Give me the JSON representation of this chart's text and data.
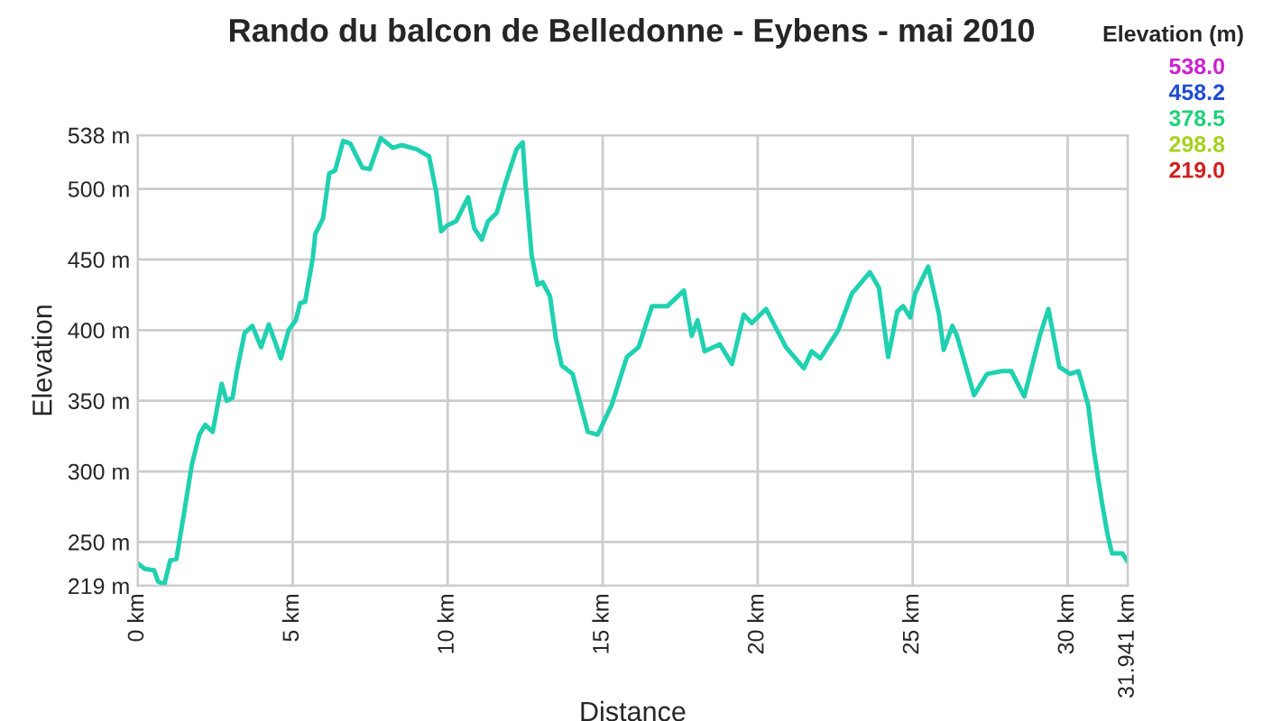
{
  "chart_data": {
    "type": "line",
    "title": "Rando du balcon de Belledonne - Eybens - mai 2010",
    "xlabel": "Distance",
    "ylabel": "Elevation",
    "annotations": [
      "Elevation (m)",
      "538.0",
      "458.2",
      "378.5",
      "298.8",
      "219.0"
    ],
    "x": [
      0,
      0.23,
      0.53,
      0.66,
      0.86,
      1.05,
      1.25,
      1.5,
      1.75,
      1.99,
      2.18,
      2.42,
      2.71,
      2.87,
      3.06,
      3.2,
      3.45,
      3.7,
      3.98,
      4.23,
      4.62,
      4.87,
      5.1,
      5.24,
      5.4,
      5.65,
      5.73,
      5.98,
      6.18,
      6.37,
      6.63,
      6.86,
      7.25,
      7.49,
      7.84,
      8.23,
      8.52,
      9.0,
      9.4,
      9.63,
      9.79,
      9.98,
      10.27,
      10.66,
      10.86,
      11.1,
      11.3,
      11.58,
      11.89,
      12.22,
      12.42,
      12.51,
      12.71,
      12.9,
      13.06,
      13.3,
      13.49,
      13.68,
      14.03,
      14.52,
      14.84,
      15.29,
      15.78,
      16.16,
      16.59,
      17.09,
      17.62,
      17.87,
      18.06,
      18.29,
      18.78,
      19.17,
      19.55,
      19.81,
      20.27,
      20.91,
      21.49,
      21.74,
      22.02,
      22.6,
      23.04,
      23.62,
      23.91,
      24.21,
      24.5,
      24.69,
      24.92,
      25.08,
      25.5,
      25.85,
      26.0,
      26.28,
      26.43,
      26.98,
      27.4,
      27.89,
      28.18,
      28.6,
      29.1,
      29.38,
      29.73,
      30.08,
      30.35,
      30.66,
      30.85,
      31.09,
      31.28,
      31.43,
      31.76,
      31.94
    ],
    "values": [
      235,
      231,
      230,
      222,
      220,
      237,
      238,
      271,
      305,
      326,
      333,
      328,
      362,
      350,
      352,
      371,
      398,
      403,
      388,
      404,
      380,
      400,
      407,
      419,
      420,
      451,
      468,
      479,
      511,
      513,
      534,
      532,
      515,
      514,
      536,
      529,
      531,
      528,
      523,
      498,
      470,
      474,
      477,
      494,
      472,
      464,
      477,
      483,
      506,
      528,
      533,
      504,
      453,
      432,
      434,
      424,
      394,
      375,
      369,
      328,
      326,
      347,
      381,
      388,
      417,
      417,
      428,
      396,
      407,
      385,
      390,
      376,
      411,
      405,
      415,
      388,
      373,
      385,
      380,
      400,
      426,
      441,
      430,
      381,
      413,
      417,
      409,
      426,
      445,
      411,
      386,
      403,
      396,
      354,
      369,
      371,
      371,
      353,
      396,
      415,
      374,
      369,
      371,
      347,
      314,
      280,
      256,
      242,
      242,
      236
    ],
    "xlim": [
      0,
      31.941
    ],
    "xticks": [
      {
        "value": 0,
        "label": "0 km"
      },
      {
        "value": 5,
        "label": "5 km"
      },
      {
        "value": 10,
        "label": "10 km"
      },
      {
        "value": 15,
        "label": "15 km"
      },
      {
        "value": 20,
        "label": "20 km"
      },
      {
        "value": 25,
        "label": "25 km"
      },
      {
        "value": 30,
        "label": "30 km"
      },
      {
        "value": 31.941,
        "label": "31.941 km"
      }
    ],
    "ylim": [
      219,
      538
    ],
    "yticks": [
      {
        "value": 219,
        "label": "219 m"
      },
      {
        "value": 250,
        "label": "250 m"
      },
      {
        "value": 300,
        "label": "300 m"
      },
      {
        "value": 350,
        "label": "350 m"
      },
      {
        "value": 400,
        "label": "400 m"
      },
      {
        "value": 450,
        "label": "450 m"
      },
      {
        "value": 500,
        "label": "500 m"
      },
      {
        "value": 538,
        "label": "538 m"
      }
    ],
    "grid": true
  }
}
